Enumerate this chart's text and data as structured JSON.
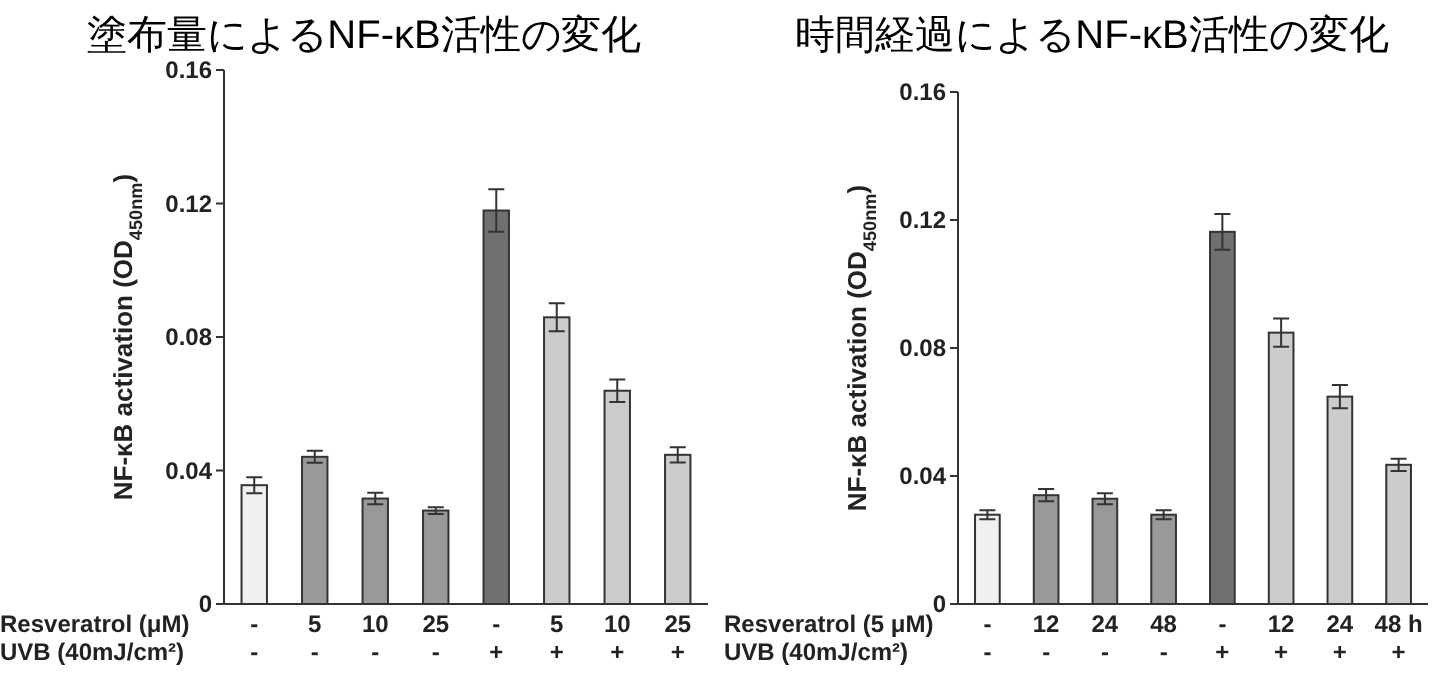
{
  "chart_data": [
    {
      "type": "bar",
      "title": "塗布量によるNF-κB活性の変化",
      "ylabel": "NF-κB activation (OD$_{450nm}$)",
      "categories": [
        "-\n-",
        "5\n-",
        "10\n-",
        "25\n-",
        "-\n+",
        "5\n+",
        "10\n+",
        "25\n+"
      ],
      "values": [
        0.0356,
        0.0441,
        0.0316,
        0.028,
        0.1179,
        0.0859,
        0.0639,
        0.0447
      ],
      "errors": [
        0.0024,
        0.0018,
        0.0017,
        0.001,
        0.0064,
        0.0042,
        0.0034,
        0.0023
      ],
      "colors": [
        "#f0f0f0",
        "#999999",
        "#999999",
        "#999999",
        "#707070",
        "#cccccc",
        "#cccccc",
        "#cccccc"
      ],
      "ylim": [
        0,
        0.16
      ],
      "yticks": [
        {
          "value": 0,
          "label": "0"
        },
        0.04,
        0.08,
        0.12,
        0.16
      ],
      "annotations": [
        "Resveratrol (μM)",
        "UVB (40mJ/cm²)"
      ]
    },
    {
      "type": "bar",
      "title": "時間経過によるNF-κB活性の変化",
      "ylabel": "NF-κB activation (OD$_{450nm}$)",
      "categories": [
        "-\n-",
        "12\n-",
        "24\n-",
        "48\n-",
        "-\n+",
        "12\n+",
        "24\n+",
        "48 h\n+"
      ],
      "values": [
        0.0279,
        0.034,
        0.0329,
        0.0279,
        0.1163,
        0.0848,
        0.0648,
        0.0435
      ],
      "errors": [
        0.0014,
        0.0019,
        0.0017,
        0.0014,
        0.0056,
        0.0044,
        0.0036,
        0.0019
      ],
      "colors": [
        "#f0f0f0",
        "#999999",
        "#999999",
        "#999999",
        "#707070",
        "#cccccc",
        "#cccccc",
        "#cccccc"
      ],
      "ylim": [
        0,
        0.16
      ],
      "yticks": [
        {
          "value": 0,
          "label": "0"
        },
        0.04,
        0.08,
        0.12,
        0.16
      ],
      "annotations": [
        "Resveratrol (5 μM)",
        "UVB (40mJ/cm²)"
      ]
    }
  ]
}
